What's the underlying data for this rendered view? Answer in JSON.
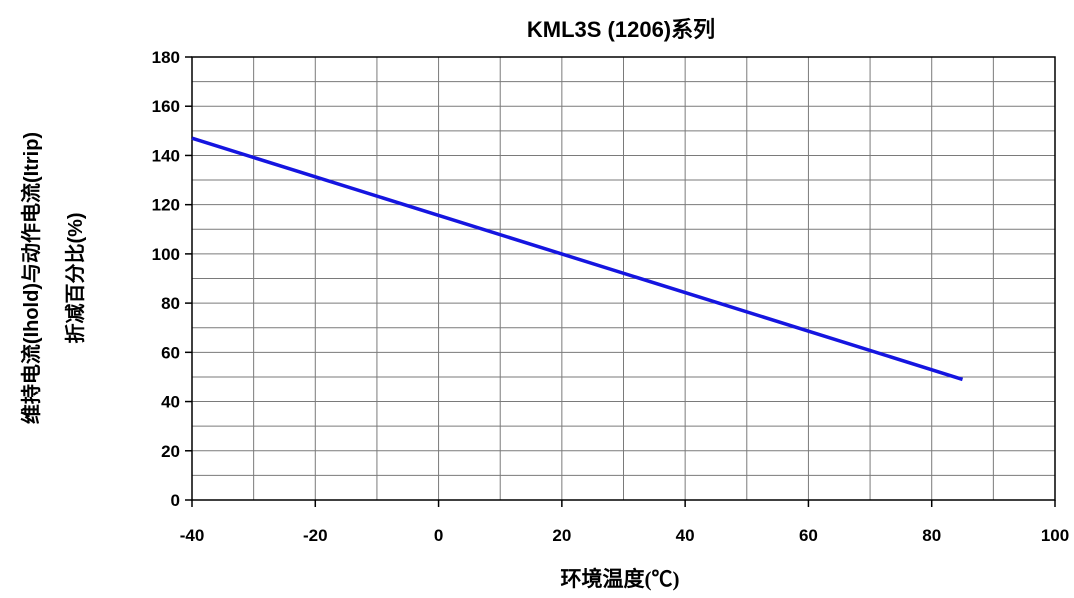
{
  "chart_data": {
    "type": "line",
    "title": "KML3S (1206)系列",
    "xlabel": "环境温度(℃)",
    "ylabel_lines": [
      "维持电流(Ihold)与动作电流(Itrip)",
      "折减百分比(%)"
    ],
    "xlim": [
      -40,
      100
    ],
    "ylim": [
      0,
      180
    ],
    "x_ticks": [
      -40,
      -20,
      0,
      20,
      40,
      60,
      80,
      100
    ],
    "y_ticks": [
      0,
      20,
      40,
      60,
      80,
      100,
      120,
      140,
      160,
      180
    ],
    "grid": true,
    "series": [
      {
        "x": [
          -40,
          85
        ],
        "y": [
          147,
          49
        ],
        "color": "#1515e0"
      }
    ]
  }
}
